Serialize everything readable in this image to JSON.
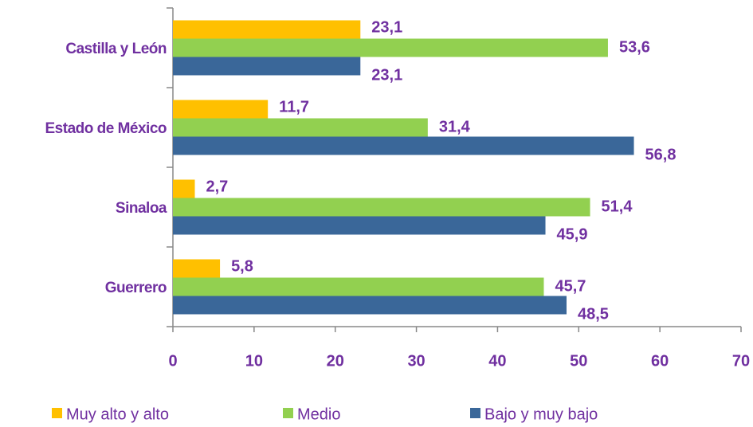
{
  "chart_data": {
    "type": "bar",
    "orientation": "horizontal",
    "categories": [
      "Castilla y León",
      "Estado de México",
      "Sinaloa",
      "Guerrero"
    ],
    "series": [
      {
        "name": "Muy alto y alto",
        "color": "#FFC000",
        "values": [
          23.1,
          11.7,
          2.7,
          5.8
        ],
        "value_labels": [
          "23,1",
          "11,7",
          "2,7",
          "5,8"
        ]
      },
      {
        "name": "Medio",
        "color": "#92D050",
        "values": [
          53.6,
          31.4,
          51.4,
          45.7
        ],
        "value_labels": [
          "53,6",
          "31,4",
          "51,4",
          "45,7"
        ]
      },
      {
        "name": "Bajo y muy bajo",
        "color": "#3A6799",
        "values": [
          23.1,
          56.8,
          45.9,
          48.5
        ],
        "value_labels": [
          "23,1",
          "56,8",
          "45,9",
          "48,5"
        ]
      }
    ],
    "xlim": [
      0,
      70
    ],
    "xticks": [
      0,
      10,
      20,
      30,
      40,
      50,
      60,
      70
    ],
    "legend": "bottom"
  }
}
